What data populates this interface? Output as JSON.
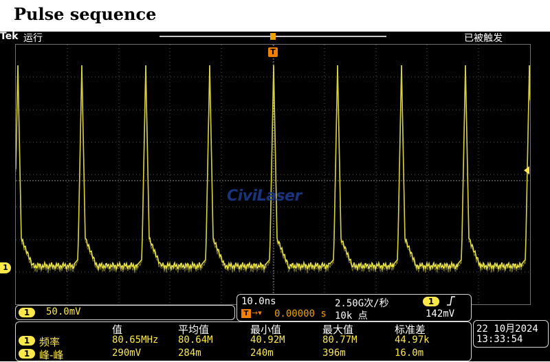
{
  "page_title": "Pulse sequence",
  "status_bar": {
    "brand": "Tek",
    "run_state": "运行",
    "trigger_state": "已被触发"
  },
  "markers": {
    "trigger_position": "T",
    "channel": "1"
  },
  "watermark": "CiviLaser",
  "channel_box": {
    "channel": "1",
    "scale": "50.0mV"
  },
  "timebase": {
    "horizontal_scale": "10.0ns",
    "sample_rate": "2.50G次/秒",
    "delay": "0.00000 s",
    "record_length": "10k 点",
    "trigger_channel": "1",
    "trigger_level": "142mV"
  },
  "measurements": {
    "headers": [
      "值",
      "平均值",
      "最小值",
      "最大值",
      "标准差"
    ],
    "rows": [
      {
        "channel": "1",
        "name": "频率",
        "values": [
          "80.65MHz",
          "80.64M",
          "40.92M",
          "80.77M",
          "44.97k"
        ]
      },
      {
        "channel": "1",
        "name": "峰-峰",
        "values": [
          "290mV",
          "284m",
          "240m",
          "396m",
          "16.0m"
        ]
      }
    ]
  },
  "datetime": {
    "date": "22 10月2024",
    "time": "13:33:54"
  },
  "colors": {
    "trace": "#e8e04a",
    "background": "#000000",
    "trigger_marker": "#f08000",
    "watermark": "#1b3a8a"
  }
}
